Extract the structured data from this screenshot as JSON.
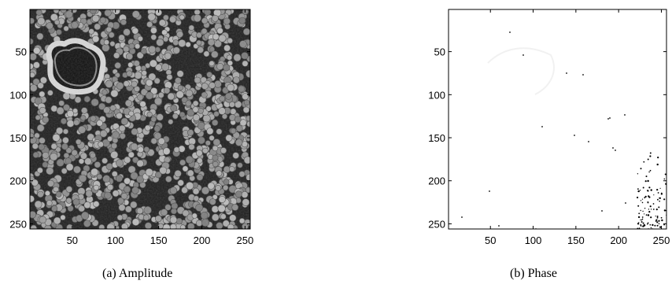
{
  "panels": [
    {
      "id": "amplitude",
      "caption": "(a)  Amplitude",
      "x_ticks": [
        50,
        100,
        150,
        200,
        250
      ],
      "y_ticks": [
        50,
        100,
        150,
        200,
        250
      ],
      "axis_range": [
        1,
        256
      ],
      "image_style": "grayscale texture of densely packed light-gray round particles on a dark background, with a bright ring-shaped feature near the upper left"
    },
    {
      "id": "phase",
      "caption": "(b)  Phase",
      "x_ticks": [
        50,
        100,
        150,
        200,
        250
      ],
      "y_ticks": [
        50,
        100,
        150,
        200,
        250
      ],
      "axis_range": [
        1,
        256
      ],
      "image_style": "almost entirely white field with sparse isolated black dots, denser in the lower-right corner"
    }
  ]
}
